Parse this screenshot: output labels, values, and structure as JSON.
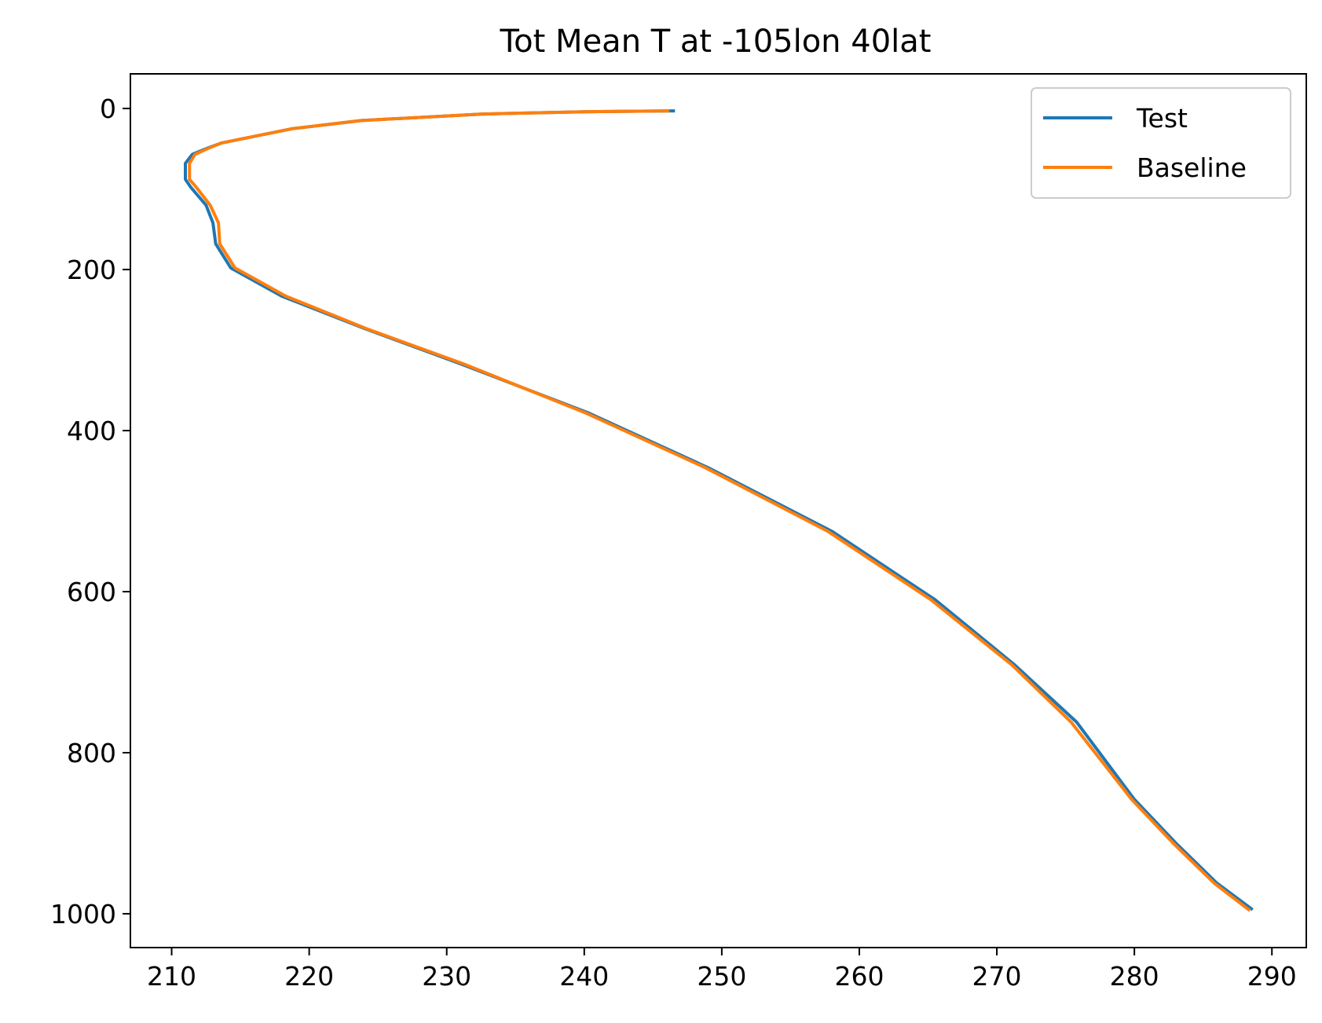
{
  "chart_data": {
    "type": "line",
    "title": "Tot Mean T at -105lon 40lat",
    "xlabel": "",
    "ylabel": "",
    "xlim": [
      207,
      292.5
    ],
    "ylim": [
      1042,
      -43
    ],
    "y_inverted": true,
    "xticks": [
      210,
      220,
      230,
      240,
      250,
      260,
      270,
      280,
      290
    ],
    "yticks": [
      0,
      200,
      400,
      600,
      800,
      1000
    ],
    "grid": false,
    "legend_position": "top-right",
    "colors": {
      "Test": "#1f77b4",
      "Baseline": "#ff7f0e"
    },
    "series": [
      {
        "name": "Test",
        "color": "#1f77b4",
        "x": [
          246.6,
          240.0,
          232.5,
          223.8,
          218.8,
          213.6,
          212.5,
          211.5,
          211.0,
          211.0,
          211.4,
          212.5,
          213.0,
          213.2,
          214.3,
          218.0,
          224.0,
          231.0,
          240.3,
          249.0,
          258.0,
          265.5,
          271.3,
          275.8,
          280.0,
          283.0,
          286.0,
          288.6
        ],
        "y": [
          3,
          4,
          7,
          15,
          25,
          43,
          50,
          57,
          68,
          88,
          98,
          120,
          142,
          168,
          198,
          233,
          273,
          317,
          378,
          446,
          525,
          610,
          691,
          762,
          858,
          912,
          962,
          995
        ]
      },
      {
        "name": "Baseline",
        "color": "#ff7f0e",
        "x": [
          246.2,
          240.0,
          232.5,
          223.8,
          218.8,
          213.6,
          212.6,
          211.7,
          211.3,
          211.3,
          211.8,
          212.8,
          213.4,
          213.5,
          214.6,
          218.3,
          224.1,
          231.2,
          240.1,
          248.8,
          257.7,
          265.2,
          271.1,
          275.4,
          279.8,
          282.8,
          285.8,
          288.4
        ],
        "y": [
          3,
          4,
          7,
          15,
          25,
          43,
          50,
          57,
          68,
          88,
          98,
          120,
          142,
          168,
          198,
          233,
          273,
          317,
          378,
          446,
          525,
          610,
          691,
          762,
          858,
          912,
          962,
          996
        ]
      }
    ]
  }
}
